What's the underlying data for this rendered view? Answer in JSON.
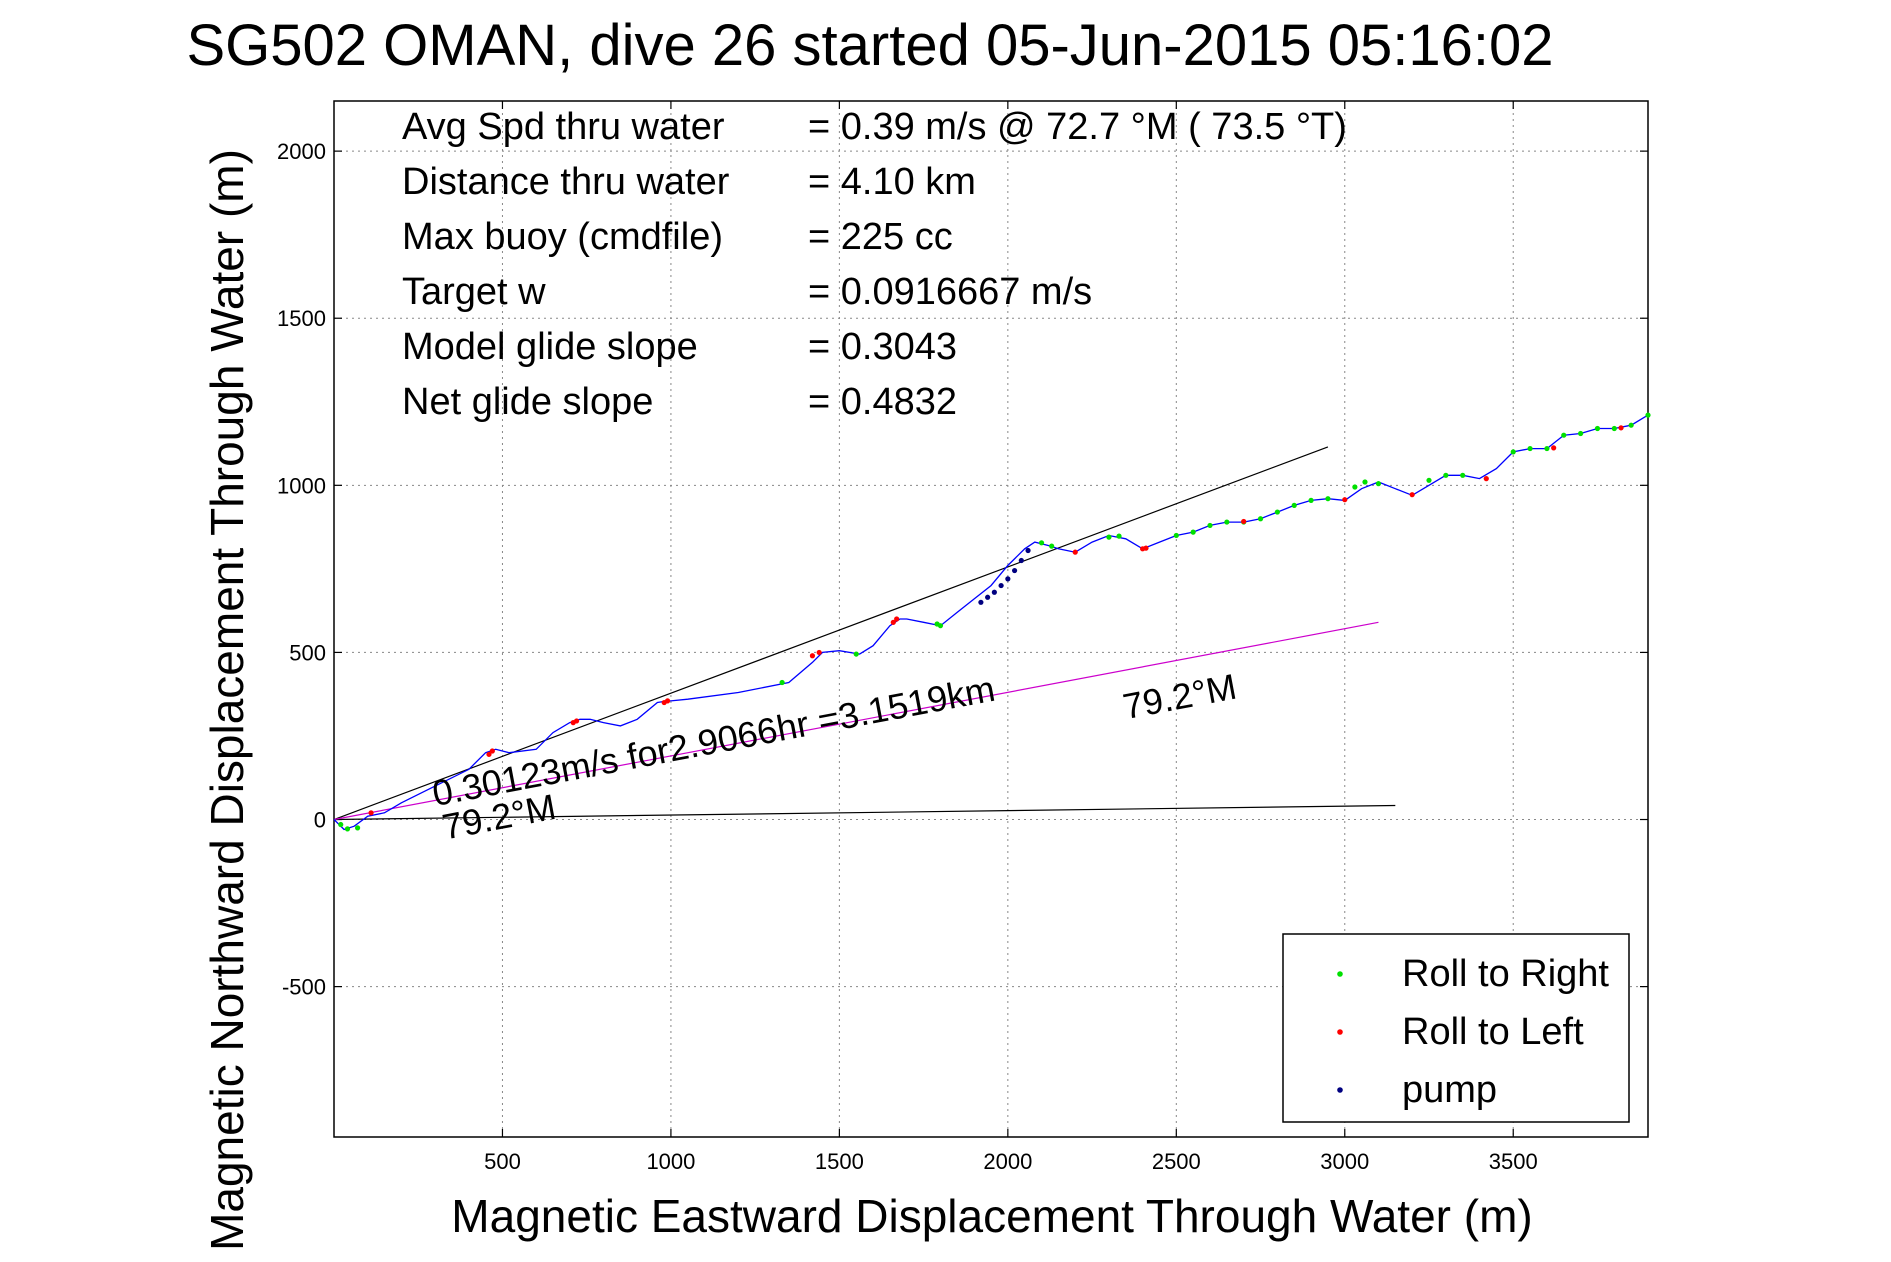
{
  "chart_data": {
    "type": "line",
    "title": "SG502 OMAN, dive 26 started 05-Jun-2015 05:16:02",
    "xlabel": "Magnetic Eastward Displacement Through Water (m)",
    "ylabel": "Magnetic Northward Displacement Through Water (m)",
    "xlim": [
      0,
      3900
    ],
    "ylim": [
      -950,
      2150
    ],
    "xticks": [
      500,
      1000,
      1500,
      2000,
      2500,
      3000,
      3500
    ],
    "yticks": [
      -500,
      0,
      500,
      1000,
      1500,
      2000
    ],
    "grid": true,
    "legend_position": "bottom-right",
    "info_lines": [
      {
        "label": "Avg Spd thru water",
        "value": "=  0.39 m/s @  72.7 °M ( 73.5 °T)"
      },
      {
        "label": "Distance thru water",
        "value": "=  4.10 km"
      },
      {
        "label": "Max buoy (cmdfile)",
        "value": "= 225 cc"
      },
      {
        "label": "Target w",
        "value": "= 0.0916667 m/s"
      },
      {
        "label": "Model glide slope",
        "value": "= 0.3043"
      },
      {
        "label": "Net glide slope",
        "value": "= 0.4832"
      }
    ],
    "annotations": [
      {
        "text": "0.30123m/s for2.9066hr =3.1519km",
        "x": 300,
        "y": 40
      },
      {
        "text": "79.2°M",
        "x": 330,
        "y": -60
      },
      {
        "text": "79.2°M",
        "x": 2350,
        "y": 300
      }
    ],
    "reference_lines": [
      {
        "name": "upper",
        "color": "#000000",
        "x": [
          0,
          2950
        ],
        "y": [
          0,
          1115
        ]
      },
      {
        "name": "bottom",
        "color": "#000000",
        "x": [
          0,
          3150
        ],
        "y": [
          0,
          42
        ]
      },
      {
        "name": "heading",
        "color": "#cc00cc",
        "x": [
          0,
          3100
        ],
        "y": [
          0,
          590
        ]
      }
    ],
    "track": {
      "color": "#0000ff",
      "x": [
        0,
        30,
        60,
        100,
        150,
        200,
        300,
        400,
        450,
        480,
        520,
        600,
        650,
        700,
        730,
        760,
        800,
        850,
        900,
        960,
        990,
        1000,
        1050,
        1200,
        1350,
        1420,
        1450,
        1500,
        1560,
        1600,
        1650,
        1680,
        1700,
        1750,
        1800,
        1850,
        1900,
        1950,
        2000,
        2050,
        2080,
        2120,
        2150,
        2200,
        2250,
        2300,
        2350,
        2400,
        2450,
        2500,
        2550,
        2600,
        2650,
        2700,
        2750,
        2800,
        2850,
        2900,
        2950,
        3000,
        3050,
        3100,
        3150,
        3200,
        3250,
        3300,
        3350,
        3400,
        3450,
        3500,
        3550,
        3600,
        3650,
        3700,
        3750,
        3800,
        3850,
        3900
      ],
      "y": [
        0,
        -30,
        -20,
        10,
        20,
        50,
        100,
        150,
        200,
        210,
        200,
        210,
        260,
        290,
        300,
        300,
        290,
        280,
        300,
        350,
        355,
        355,
        360,
        380,
        410,
        470,
        500,
        505,
        495,
        520,
        580,
        600,
        600,
        590,
        580,
        620,
        660,
        700,
        760,
        810,
        830,
        820,
        810,
        800,
        830,
        850,
        840,
        810,
        830,
        850,
        860,
        880,
        890,
        890,
        900,
        920,
        940,
        955,
        960,
        955,
        990,
        1010,
        990,
        970,
        1000,
        1030,
        1030,
        1020,
        1050,
        1100,
        1110,
        1110,
        1150,
        1155,
        1170,
        1170,
        1180,
        1210
      ]
    },
    "series": [
      {
        "name": "Roll to Right",
        "color": "#00e000",
        "x": [
          20,
          40,
          70,
          1330,
          1550,
          1790,
          1800,
          2100,
          2130,
          2300,
          2330,
          2500,
          2550,
          2600,
          2650,
          2700,
          2750,
          2800,
          2850,
          2900,
          2950,
          3030,
          3060,
          3100,
          3250,
          3300,
          3350,
          3500,
          3550,
          3600,
          3650,
          3700,
          3750,
          3800,
          3850,
          3900
        ],
        "y": [
          -15,
          -28,
          -25,
          410,
          495,
          585,
          580,
          828,
          818,
          845,
          848,
          850,
          860,
          880,
          890,
          890,
          900,
          920,
          940,
          955,
          960,
          995,
          1010,
          1005,
          1015,
          1030,
          1030,
          1100,
          1110,
          1110,
          1150,
          1155,
          1170,
          1170,
          1180,
          1210
        ]
      },
      {
        "name": "Roll to Left",
        "color": "#ff0000",
        "x": [
          110,
          460,
          470,
          710,
          720,
          980,
          990,
          1420,
          1440,
          1660,
          1670,
          2200,
          2400,
          2410,
          2700,
          3000,
          3200,
          3420,
          3620,
          3820
        ],
        "y": [
          20,
          195,
          205,
          290,
          295,
          350,
          355,
          490,
          500,
          590,
          600,
          800,
          810,
          812,
          892,
          957,
          972,
          1020,
          1112,
          1172
        ]
      },
      {
        "name": "pump",
        "color": "#000080",
        "x": [
          1920,
          1940,
          1960,
          1980,
          2000,
          2020,
          2040,
          2060
        ],
        "y": [
          650,
          665,
          680,
          700,
          720,
          745,
          775,
          805
        ]
      }
    ]
  }
}
